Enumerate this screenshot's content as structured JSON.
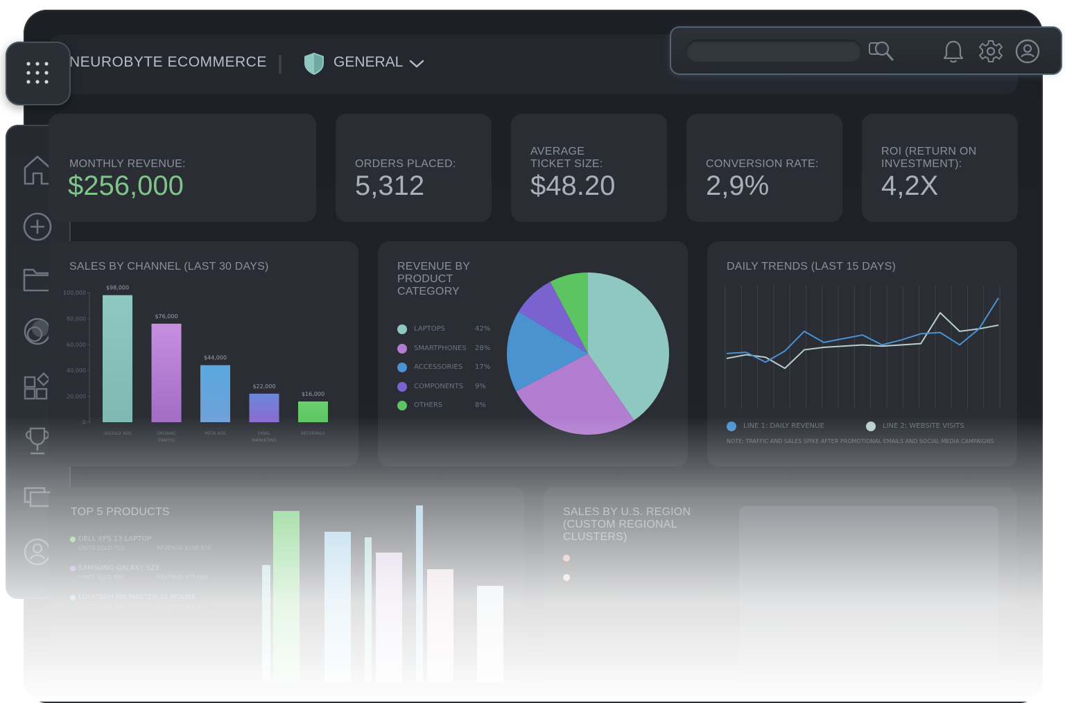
{
  "app": {
    "brand": "NEUROBYTE ECOMMERCE",
    "workspace": "GENERAL"
  },
  "icons": {
    "apps": "grid-icon",
    "workspace": "shield-icon",
    "dropdown": "chevron-down-icon",
    "search": "search-icon",
    "notifications": "bell-icon",
    "settings": "gear-icon",
    "profile": "user-circle-icon"
  },
  "sidebar": {
    "items": [
      {
        "icon": "home-icon"
      },
      {
        "icon": "plus-circle-icon"
      },
      {
        "icon": "folder-icon"
      },
      {
        "icon": "chart-circle-icon"
      },
      {
        "icon": "widgets-icon"
      },
      {
        "icon": "trophy-icon"
      },
      {
        "icon": "devices-icon"
      },
      {
        "icon": "user-icon"
      }
    ]
  },
  "kpis": [
    {
      "label": "MONTHLY REVENUE:",
      "value": "$256,000"
    },
    {
      "label": "ORDERS PLACED:",
      "value": "5,312"
    },
    {
      "label": "AVERAGE TICKET SIZE:",
      "value": "$48.20"
    },
    {
      "label": "CONVERSION RATE:",
      "value": "2,9%"
    },
    {
      "label": "ROI (RETURN ON INVESTMENT):",
      "value": "4,2X"
    }
  ],
  "panels": {
    "sales_channel": {
      "title": "SALES BY CHANNEL (LAST 30 DAYS)"
    },
    "revenue_category": {
      "title": "REVENUE BY PRODUCT CATEGORY",
      "legend": [
        {
          "name": "LAPTOPS",
          "pct": "42%"
        },
        {
          "name": "SMARTPHONES",
          "pct": "28%"
        },
        {
          "name": "ACCESSORIES",
          "pct": "17%"
        },
        {
          "name": "COMPONENTS",
          "pct": "9%"
        },
        {
          "name": "OTHERS",
          "pct": "8%"
        }
      ]
    },
    "daily_trends": {
      "title": "DAILY TRENDS (LAST 15 DAYS)",
      "legend": [
        "LINE 1: DAILY REVENUE",
        "LINE 2: WEBSITE VISITS"
      ],
      "note": "NOTE: TRAFFIC AND SALES SPIKE AFTER PROMOTIONAL EMAILS AND SOCIAL MEDIA CAMPAIGNS"
    },
    "top_products": {
      "title": "TOP 5 PRODUCTS",
      "items": [
        {
          "name": "DELL XPS 13 LAPTOP",
          "units": "UNITS SOLD 752",
          "revenue": "REVENUE $108,820"
        },
        {
          "name": "SAMSUNG GALAXY S23",
          "units": "UNITS SOLD 600",
          "revenue": "REVENUE $79,800"
        },
        {
          "name": "LOGITECH MX MASTER 3S MOUSE",
          "units": "UNITS SOLD 612",
          "revenue": "REVENUE $61,800"
        }
      ]
    },
    "us_region": {
      "title": "SALES BY U.S. REGION (CUSTOM REGIONAL CLUSTERS)"
    }
  },
  "colors": {
    "teal": "#8fc8c0",
    "purple": "#b07dd0",
    "blue": "#4b92d0",
    "violet": "#7a62d0",
    "green": "#5cc460",
    "kpi_green": "#7fc489"
  },
  "chart_data": [
    {
      "type": "bar",
      "title": "SALES BY CHANNEL (LAST 30 DAYS)",
      "categories": [
        "GOOGLE ADS",
        "ORGANIC TRAFFIC",
        "META ADS",
        "EMAIL MARKETING",
        "REFERRALS"
      ],
      "values": [
        98000,
        76000,
        44000,
        22000,
        16000
      ],
      "data_labels": [
        "$98,000",
        "$76,000",
        "$44,000",
        "$22,000",
        "$16,000"
      ],
      "yticks": [
        "100,000",
        "80,000",
        "60,000",
        "40,000",
        "20,000",
        "0"
      ],
      "ylim": [
        0,
        100000
      ]
    },
    {
      "type": "pie",
      "title": "REVENUE BY PRODUCT CATEGORY",
      "categories": [
        "LAPTOPS",
        "SMARTPHONES",
        "ACCESSORIES",
        "COMPONENTS",
        "OTHERS"
      ],
      "values": [
        42,
        28,
        17,
        9,
        8
      ]
    },
    {
      "type": "line",
      "title": "DAILY TRENDS (LAST 15 DAYS)",
      "x": [
        1,
        2,
        3,
        4,
        5,
        6,
        7,
        8,
        9,
        10,
        11,
        12,
        13,
        14,
        15
      ],
      "series": [
        {
          "name": "LINE 1: DAILY REVENUE",
          "values": [
            45,
            46,
            38,
            47,
            63,
            54,
            57,
            60,
            52,
            56,
            61,
            62,
            52,
            65,
            90
          ]
        },
        {
          "name": "LINE 2: WEBSITE VISITS",
          "values": [
            41,
            44,
            42,
            33,
            48,
            50,
            51,
            52,
            51,
            52,
            53,
            78,
            63,
            65,
            68
          ]
        }
      ],
      "ylim": [
        0,
        100
      ]
    }
  ]
}
